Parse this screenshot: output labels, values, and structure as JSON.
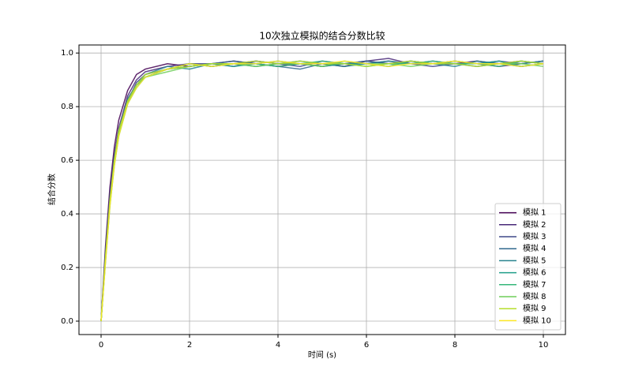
{
  "chart_data": {
    "type": "line",
    "title": "10次独立模拟的结合分数比较",
    "xlabel": "时间 (s)",
    "ylabel": "结合分数",
    "x": [
      0,
      0.1,
      0.2,
      0.3,
      0.4,
      0.6,
      0.8,
      1,
      1.5,
      2,
      2.5,
      3,
      3.5,
      4,
      4.5,
      5,
      5.5,
      6,
      6.5,
      7,
      7.5,
      8,
      8.5,
      9,
      9.5,
      10
    ],
    "series": [
      {
        "name": "模拟 1",
        "color": "#440154",
        "values": [
          0,
          0.28,
          0.5,
          0.65,
          0.75,
          0.86,
          0.92,
          0.94,
          0.96,
          0.95,
          0.96,
          0.97,
          0.96,
          0.95,
          0.96,
          0.96,
          0.95,
          0.97,
          0.96,
          0.97,
          0.96,
          0.96,
          0.97,
          0.96,
          0.97,
          0.96
        ]
      },
      {
        "name": "模拟 2",
        "color": "#482878",
        "values": [
          0,
          0.26,
          0.47,
          0.62,
          0.72,
          0.84,
          0.9,
          0.93,
          0.95,
          0.96,
          0.95,
          0.96,
          0.97,
          0.96,
          0.96,
          0.95,
          0.96,
          0.97,
          0.98,
          0.96,
          0.96,
          0.97,
          0.96,
          0.95,
          0.96,
          0.97
        ]
      },
      {
        "name": "模拟 3",
        "color": "#3e4989",
        "values": [
          0,
          0.24,
          0.45,
          0.6,
          0.7,
          0.82,
          0.89,
          0.92,
          0.94,
          0.96,
          0.96,
          0.95,
          0.97,
          0.96,
          0.95,
          0.97,
          0.96,
          0.96,
          0.97,
          0.96,
          0.95,
          0.96,
          0.96,
          0.97,
          0.96,
          0.97
        ]
      },
      {
        "name": "模拟 4",
        "color": "#31688e",
        "values": [
          0,
          0.25,
          0.46,
          0.61,
          0.71,
          0.83,
          0.88,
          0.91,
          0.94,
          0.95,
          0.96,
          0.97,
          0.96,
          0.95,
          0.94,
          0.96,
          0.96,
          0.97,
          0.96,
          0.96,
          0.97,
          0.96,
          0.95,
          0.96,
          0.95,
          0.96
        ]
      },
      {
        "name": "模拟 5",
        "color": "#26828e",
        "values": [
          0,
          0.23,
          0.44,
          0.59,
          0.7,
          0.81,
          0.88,
          0.92,
          0.95,
          0.94,
          0.96,
          0.96,
          0.95,
          0.96,
          0.97,
          0.96,
          0.95,
          0.96,
          0.97,
          0.96,
          0.96,
          0.95,
          0.97,
          0.96,
          0.96,
          0.97
        ]
      },
      {
        "name": "模拟 6",
        "color": "#1f9e89",
        "values": [
          0,
          0.24,
          0.44,
          0.6,
          0.71,
          0.82,
          0.88,
          0.91,
          0.94,
          0.95,
          0.96,
          0.95,
          0.96,
          0.97,
          0.96,
          0.95,
          0.96,
          0.96,
          0.95,
          0.97,
          0.96,
          0.96,
          0.96,
          0.97,
          0.95,
          0.96
        ]
      },
      {
        "name": "模拟 7",
        "color": "#35b779",
        "values": [
          0,
          0.22,
          0.43,
          0.58,
          0.69,
          0.81,
          0.87,
          0.91,
          0.94,
          0.96,
          0.95,
          0.96,
          0.96,
          0.95,
          0.96,
          0.97,
          0.96,
          0.95,
          0.96,
          0.96,
          0.97,
          0.96,
          0.96,
          0.95,
          0.97,
          0.96
        ]
      },
      {
        "name": "模拟 8",
        "color": "#6ece58",
        "values": [
          0,
          0.23,
          0.44,
          0.59,
          0.7,
          0.82,
          0.88,
          0.91,
          0.93,
          0.95,
          0.96,
          0.96,
          0.95,
          0.96,
          0.96,
          0.95,
          0.97,
          0.96,
          0.96,
          0.95,
          0.96,
          0.97,
          0.96,
          0.96,
          0.96,
          0.95
        ]
      },
      {
        "name": "模拟 9",
        "color": "#b5de2b",
        "values": [
          0,
          0.24,
          0.45,
          0.6,
          0.71,
          0.82,
          0.88,
          0.92,
          0.94,
          0.95,
          0.96,
          0.96,
          0.97,
          0.96,
          0.97,
          0.96,
          0.96,
          0.95,
          0.96,
          0.97,
          0.96,
          0.96,
          0.95,
          0.96,
          0.97,
          0.96
        ]
      },
      {
        "name": "模拟 10",
        "color": "#fde725",
        "values": [
          0,
          0.22,
          0.43,
          0.58,
          0.69,
          0.81,
          0.87,
          0.91,
          0.94,
          0.96,
          0.95,
          0.96,
          0.96,
          0.97,
          0.96,
          0.96,
          0.97,
          0.96,
          0.95,
          0.96,
          0.96,
          0.97,
          0.96,
          0.96,
          0.95,
          0.96
        ]
      }
    ],
    "xlim": [
      -0.5,
      10.5
    ],
    "xticks": [
      0,
      2,
      4,
      6,
      8,
      10
    ],
    "ylim": [
      -0.05,
      1.03
    ],
    "yticks": [
      {
        "value": 0,
        "label": "0.0"
      },
      0.2,
      0.4,
      0.6,
      0.8,
      {
        "value": 1,
        "label": "1.0"
      }
    ],
    "grid": true,
    "legend": "lower right"
  }
}
